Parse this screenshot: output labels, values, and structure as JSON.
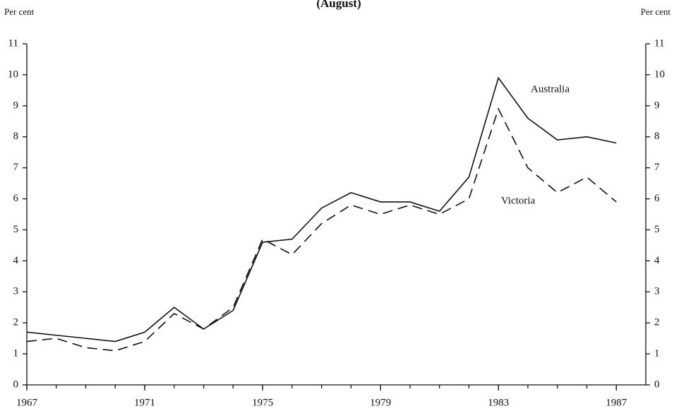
{
  "chart_data": {
    "type": "line",
    "title": "(August)",
    "ylabel": "Per cent",
    "y2label": "Per cent",
    "x": [
      1967,
      1968,
      1969,
      1970,
      1971,
      1972,
      1973,
      1974,
      1975,
      1976,
      1977,
      1978,
      1979,
      1980,
      1981,
      1982,
      1983,
      1984,
      1985,
      1986,
      1987
    ],
    "series": [
      {
        "name": "Australia",
        "color": "#111111",
        "linestyle": "solid",
        "values": [
          1.7,
          1.6,
          1.5,
          1.4,
          1.7,
          2.5,
          1.8,
          2.4,
          4.6,
          4.7,
          5.7,
          6.2,
          5.9,
          5.9,
          5.6,
          6.7,
          9.9,
          8.6,
          7.9,
          8.0,
          7.8
        ]
      },
      {
        "name": "Victoria",
        "color": "#111111",
        "linestyle": "dashed",
        "values": [
          1.4,
          1.5,
          1.2,
          1.1,
          1.4,
          2.3,
          1.8,
          2.5,
          4.7,
          4.2,
          5.2,
          5.8,
          5.5,
          5.8,
          5.5,
          6.0,
          8.9,
          7.0,
          6.2,
          6.7,
          5.9
        ]
      }
    ],
    "xlim": [
      1967,
      1988
    ],
    "xticks": [
      1967,
      1971,
      1975,
      1979,
      1983,
      1987
    ],
    "ylim": [
      0,
      11
    ],
    "yticks": [
      0,
      1,
      2,
      3,
      4,
      5,
      6,
      7,
      8,
      9,
      10,
      11
    ],
    "y2lim": [
      0,
      11
    ],
    "y2ticks": [
      0,
      1,
      2,
      3,
      4,
      5,
      6,
      7,
      8,
      9,
      10,
      11
    ],
    "grid": false
  }
}
